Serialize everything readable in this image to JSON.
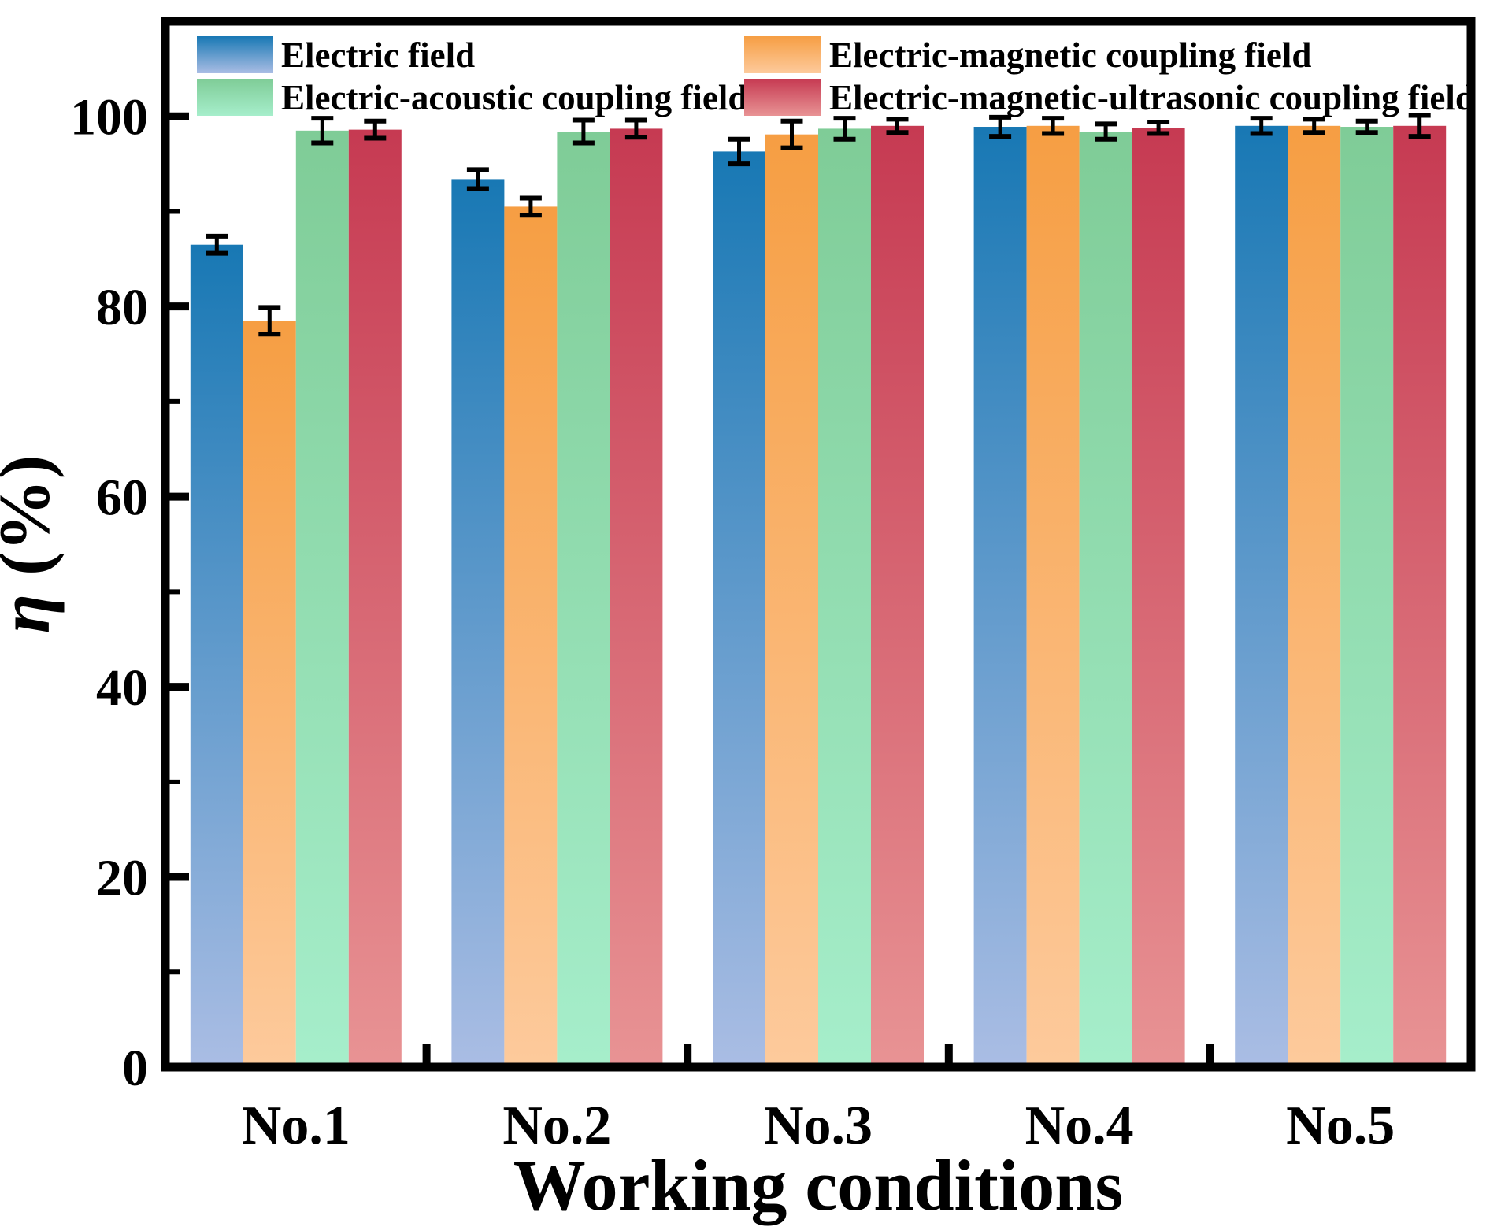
{
  "chart_data": {
    "type": "bar",
    "title": "",
    "xlabel": "Working conditions",
    "ylabel": "η (%)",
    "categories": [
      "No.1",
      "No.2",
      "No.3",
      "No.4",
      "No.5"
    ],
    "series": [
      {
        "name": "Electric field",
        "color_top": "#1878b4",
        "color_bottom": "#aabde4",
        "values": [
          86.5,
          93.4,
          96.3,
          98.9,
          99.0
        ],
        "errors": [
          0.9,
          1.0,
          1.3,
          1.0,
          0.8
        ]
      },
      {
        "name": "Electric-magnetic coupling field",
        "color_top": "#f69e43",
        "color_bottom": "#fdca9c",
        "values": [
          78.5,
          90.5,
          98.1,
          99.0,
          99.0
        ],
        "errors": [
          1.4,
          0.9,
          1.4,
          0.8,
          0.7
        ]
      },
      {
        "name": "Electric-acoustic coupling field",
        "color_top": "#7fcc97",
        "color_bottom": "#a6eecb",
        "values": [
          98.5,
          98.4,
          98.7,
          98.4,
          98.9
        ],
        "errors": [
          1.3,
          1.2,
          1.1,
          0.8,
          0.6
        ]
      },
      {
        "name": "Electric-magnetic-ultrasonic coupling field",
        "color_top": "#c63a52",
        "color_bottom": "#e89394",
        "values": [
          98.6,
          98.7,
          99.0,
          98.8,
          99.0
        ],
        "errors": [
          0.9,
          0.9,
          0.7,
          0.6,
          1.1
        ]
      }
    ],
    "ylim": [
      0,
      110
    ],
    "yticks_major": [
      0,
      20,
      40,
      60,
      80,
      100
    ],
    "yticks_minor": [
      10,
      30,
      50,
      70,
      90
    ],
    "error_bars": true,
    "grid": false,
    "legend": {
      "position": "top-inside",
      "rows": 2,
      "columns": 2,
      "order_by_column": [
        [
          0,
          2
        ],
        [
          1,
          3
        ]
      ]
    },
    "axis_color": "#000000",
    "background": "#ffffff"
  }
}
